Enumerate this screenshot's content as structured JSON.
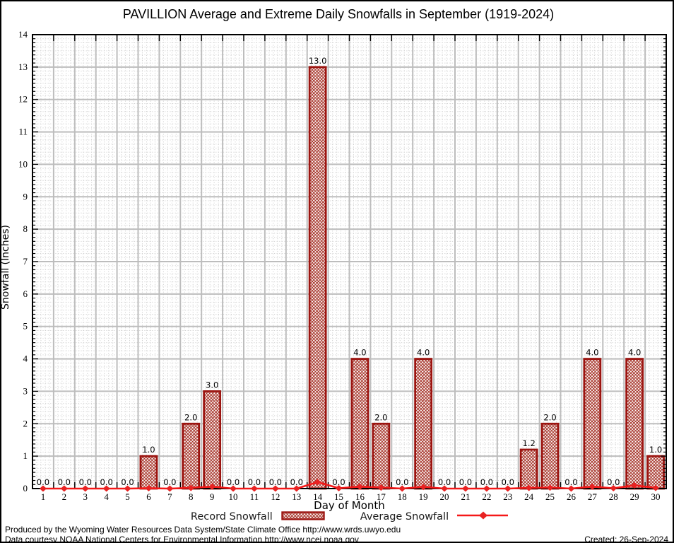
{
  "chart_data": {
    "type": "bar",
    "title": "PAVILLION Average and Extreme Daily Snowfalls in September (1919-2024)",
    "xlabel": "Day of Month",
    "ylabel": "Snowfall (Inches)",
    "ylim": [
      0,
      14
    ],
    "y_major_step": 1,
    "xlim_days": [
      1,
      30
    ],
    "grid": "on",
    "legend_position": "bottom",
    "categories": [
      1,
      2,
      3,
      4,
      5,
      6,
      7,
      8,
      9,
      10,
      11,
      12,
      13,
      14,
      15,
      16,
      17,
      18,
      19,
      20,
      21,
      22,
      23,
      24,
      25,
      26,
      27,
      28,
      29,
      30
    ],
    "series": [
      {
        "name": "Record Snowfall",
        "type": "bar",
        "values": [
          0,
          0,
          0,
          0,
          0,
          1,
          0,
          2,
          3,
          0,
          0,
          0,
          0,
          13,
          0,
          4,
          2,
          0,
          4,
          0,
          0,
          0,
          0,
          1.2,
          2,
          0,
          4,
          0,
          4,
          1
        ],
        "labels": [
          "0.0",
          "0.0",
          "0.0",
          "0.0",
          "0.0",
          "1.0",
          "0.0",
          "2.0",
          "3.0",
          "0.0",
          "0.0",
          "0.0",
          "0.0",
          "13.0",
          "0.0",
          "4.0",
          "2.0",
          "0.0",
          "4.0",
          "0.0",
          "0.0",
          "0.0",
          "0.0",
          "1.2",
          "2.0",
          "0.0",
          "4.0",
          "0.0",
          "4.0",
          "1.0"
        ]
      },
      {
        "name": "Average Snowfall",
        "type": "line",
        "values": [
          0,
          0,
          0,
          0,
          0,
          0.01,
          0,
          0.02,
          0.06,
          0,
          0,
          0,
          0,
          0.2,
          0.01,
          0.06,
          0.03,
          0,
          0.05,
          0,
          0,
          0,
          0,
          0.02,
          0.03,
          0,
          0.06,
          0.01,
          0.1,
          0.02
        ]
      }
    ]
  },
  "colors": {
    "bar_border": "#9b1410",
    "bar_hatch": "#a22a1f",
    "line": "#f51818",
    "marker": "#e82222",
    "grid_major": "#bdbdbd",
    "grid_minor": "#d2d2d2",
    "axis": "#000000",
    "text": "#000000"
  },
  "footer": {
    "produced_by": "Produced by the Wyoming Water Resources Data System/State Climate Office http://www.wrds.uwyo.edu",
    "data_courtesy": "Data courtesy NOAA National Centers for Environmental Information http://www.ncei.noaa.gov",
    "created": "Created: 26-Sep-2024"
  }
}
